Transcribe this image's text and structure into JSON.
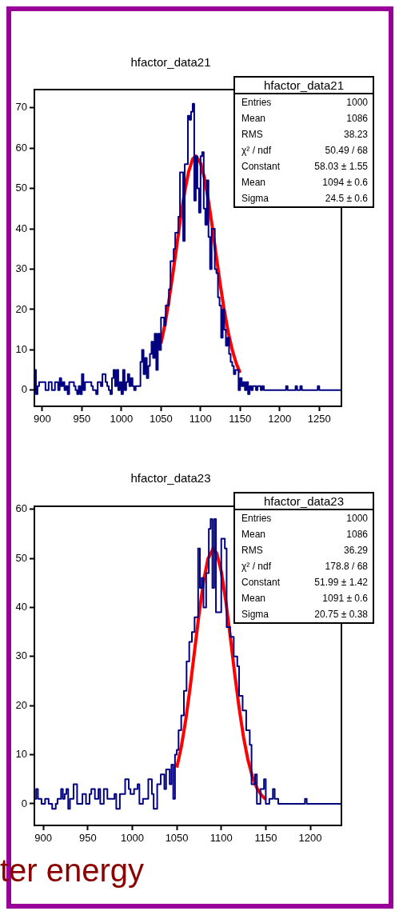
{
  "chart_data": [
    {
      "type": "step",
      "title": "hfactor_data21",
      "xlim": [
        890,
        1278
      ],
      "xticks": [
        900,
        950,
        1000,
        1050,
        1100,
        1150,
        1200,
        1250
      ],
      "ylim": [
        -4,
        74.5
      ],
      "yticks": [
        0,
        10,
        20,
        30,
        40,
        50,
        60,
        70
      ],
      "series": [
        {
          "color": "#000080",
          "x": [
            890,
            892,
            894,
            896,
            904,
            908,
            912,
            916,
            920,
            922,
            924,
            926,
            928,
            930,
            932,
            934,
            940,
            942,
            944,
            946,
            948,
            950,
            952,
            954,
            962,
            964,
            968,
            970,
            974,
            976,
            980,
            982,
            984,
            986,
            988,
            990,
            992,
            994,
            996,
            998,
            1000,
            1002,
            1004,
            1006,
            1008,
            1010,
            1012,
            1014,
            1016,
            1018,
            1024,
            1026,
            1028,
            1030,
            1032,
            1034,
            1036,
            1038,
            1040,
            1042,
            1044,
            1046,
            1048,
            1050,
            1054,
            1056,
            1060,
            1062,
            1066,
            1068,
            1072,
            1074,
            1078,
            1080,
            1084,
            1086,
            1088,
            1090,
            1092,
            1094,
            1096,
            1098,
            1100,
            1102,
            1104,
            1106,
            1108,
            1110,
            1112,
            1114,
            1118,
            1120,
            1122,
            1124,
            1126,
            1128,
            1130,
            1132,
            1134,
            1136,
            1138,
            1140,
            1142,
            1144,
            1148,
            1150,
            1152,
            1154,
            1156,
            1158,
            1160,
            1162,
            1164,
            1166,
            1170,
            1172,
            1176,
            1178,
            1180,
            1208,
            1210,
            1220,
            1222,
            1226,
            1228,
            1248,
            1250,
            1278
          ],
          "values": [
            5,
            -1,
            1,
            2,
            0,
            2,
            0,
            2,
            0,
            3,
            1,
            2,
            0,
            1,
            -1,
            2,
            1,
            0,
            -1,
            1,
            -1,
            4,
            0,
            2,
            1,
            0,
            -1,
            2,
            1,
            4,
            2,
            1,
            0,
            -1,
            3,
            5,
            1,
            5,
            0,
            2,
            -1,
            5,
            0,
            2,
            4,
            1,
            3,
            1,
            0,
            1,
            7,
            10,
            4,
            8,
            3,
            6,
            9,
            12,
            8,
            14,
            5,
            14,
            10,
            18,
            16,
            21,
            25,
            32,
            35,
            39,
            43,
            54,
            37,
            56,
            68,
            67,
            69,
            71,
            47,
            58,
            50,
            44,
            58,
            59,
            45,
            41,
            52,
            38,
            30,
            40,
            30,
            29,
            23,
            21,
            13,
            20,
            15,
            11,
            13,
            9,
            7,
            6,
            4,
            5,
            0,
            3,
            1,
            2,
            0,
            2,
            -1,
            1,
            0,
            1,
            0,
            1,
            0,
            1,
            0,
            1,
            0,
            1,
            0,
            1,
            0,
            1,
            0,
            0
          ]
        },
        {
          "type": "line",
          "color": "#ff0000",
          "x": [
            1050,
            1055,
            1060,
            1065,
            1070,
            1075,
            1080,
            1085,
            1090,
            1094,
            1100,
            1105,
            1110,
            1115,
            1120,
            1125,
            1130,
            1135,
            1140,
            1145,
            1150
          ],
          "values": [
            11.6,
            16.3,
            22.2,
            28.8,
            35.9,
            43.0,
            49.3,
            54.2,
            57.3,
            58.0,
            56.3,
            52.5,
            46.9,
            40.2,
            33.0,
            26.1,
            19.7,
            14.3,
            10.0,
            6.7,
            4.3
          ]
        }
      ],
      "annotations": [
        "hfactor_data21",
        "Entries",
        "1000",
        "Mean",
        "1086",
        "RMS",
        "38.23",
        "χ² / ndf",
        "50.49 / 68",
        "Constant",
        "58.03 ± 1.55",
        "Mean",
        "1094 ± 0.6",
        "Sigma",
        "24.5 ± 0.6"
      ]
    },
    {
      "type": "step",
      "title": "hfactor_data23",
      "xlim": [
        890,
        1235
      ],
      "xticks": [
        900,
        950,
        1000,
        1050,
        1100,
        1150,
        1200
      ],
      "ylim": [
        -4.4,
        60.6
      ],
      "yticks": [
        0,
        10,
        20,
        30,
        40,
        50,
        60
      ],
      "series": [
        {
          "color": "#000080",
          "x": [
            890,
            892,
            894,
            898,
            902,
            906,
            910,
            914,
            916,
            920,
            922,
            924,
            926,
            928,
            930,
            934,
            938,
            944,
            948,
            952,
            954,
            958,
            962,
            964,
            968,
            972,
            980,
            982,
            986,
            992,
            996,
            998,
            1002,
            1006,
            1008,
            1012,
            1018,
            1022,
            1024,
            1028,
            1032,
            1036,
            1038,
            1042,
            1044,
            1046,
            1048,
            1050,
            1052,
            1055,
            1058,
            1061,
            1064,
            1067,
            1070,
            1074,
            1076,
            1078,
            1080,
            1083,
            1086,
            1088,
            1090,
            1092,
            1094,
            1098,
            1100,
            1104,
            1106,
            1110,
            1114,
            1118,
            1120,
            1124,
            1128,
            1132,
            1134,
            1138,
            1140,
            1144,
            1148,
            1150,
            1154,
            1158,
            1160,
            1164,
            1194,
            1196,
            1235
          ],
          "values": [
            1,
            3,
            1,
            0,
            1,
            0,
            -1,
            0,
            1,
            3,
            1,
            2,
            3,
            -1,
            1,
            4,
            0,
            2,
            0,
            2,
            3,
            1,
            3,
            0,
            3,
            1,
            2,
            -1,
            2,
            5,
            3,
            2,
            3,
            4,
            0,
            1,
            5,
            2,
            -1,
            4,
            6,
            3,
            7,
            4,
            8,
            1,
            10,
            11,
            15,
            18,
            23,
            29,
            33,
            35,
            38,
            52,
            44,
            46,
            40,
            47,
            56,
            58,
            44,
            58,
            39,
            39,
            54,
            52,
            36,
            34,
            30,
            28,
            22,
            19,
            15,
            12,
            4,
            6,
            0,
            3,
            5,
            0,
            1,
            3,
            1,
            0,
            1,
            0,
            0
          ]
        },
        {
          "type": "line",
          "color": "#ff0000",
          "x": [
            1050,
            1055,
            1060,
            1065,
            1070,
            1075,
            1080,
            1085,
            1091,
            1095,
            1100,
            1105,
            1110,
            1115,
            1120,
            1125,
            1130,
            1135,
            1140,
            1145,
            1150
          ],
          "values": [
            7.4,
            11.5,
            17.0,
            23.7,
            31.2,
            38.6,
            45.2,
            49.9,
            52.0,
            51.0,
            47.3,
            41.4,
            34.2,
            26.6,
            19.6,
            13.6,
            8.9,
            5.5,
            3.2,
            1.8,
            0.9
          ]
        }
      ],
      "annotations": [
        "hfactor_data23",
        "Entries",
        "1000",
        "Mean",
        "1086",
        "RMS",
        "36.29",
        "χ² / ndf",
        "178.8 / 68",
        "Constant",
        "51.99 ± 1.42",
        "Mean",
        "1091 ± 0.6",
        "Sigma",
        "20.75 ± 0.38",
        "ter energy"
      ]
    }
  ]
}
